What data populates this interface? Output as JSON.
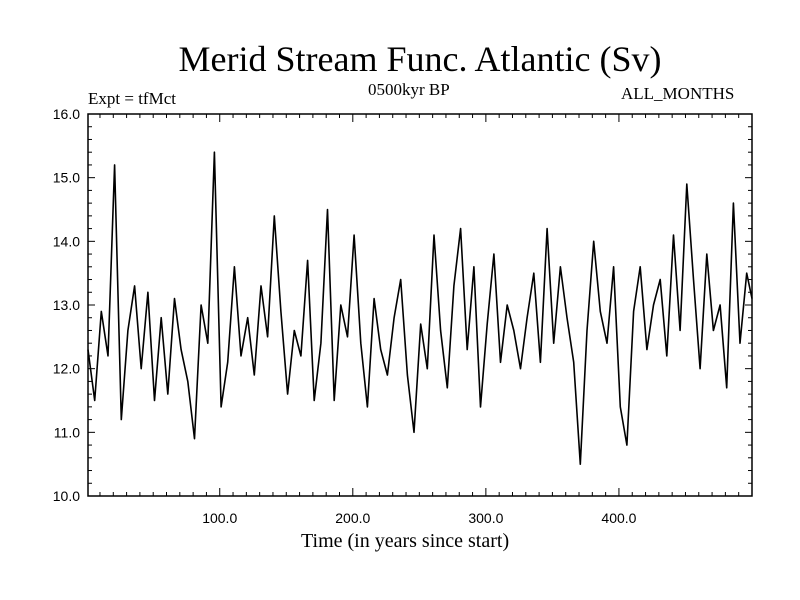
{
  "chart_data": {
    "type": "line",
    "title": "Merid Stream Func. Atlantic (Sv)",
    "subtitle_left": "Expt = tfMct",
    "subtitle_center": "0500kyr BP",
    "subtitle_right": "ALL_MONTHS",
    "xlabel": "Time (in years since start)",
    "ylabel": "",
    "xlim": [
      1,
      500
    ],
    "ylim": [
      10.0,
      16.0
    ],
    "x_ticks": [
      100,
      200,
      300,
      400
    ],
    "x_tick_labels": [
      "100.0",
      "200.0",
      "300.0",
      "400.0"
    ],
    "y_ticks": [
      10,
      11,
      12,
      13,
      14,
      15,
      16
    ],
    "y_tick_labels": [
      "10.0",
      "11.0",
      "12.0",
      "13.0",
      "14.0",
      "15.0",
      "16.0"
    ],
    "series": [
      {
        "name": "Merid Stream Func. Atlantic",
        "x": [
          1,
          6,
          11,
          16,
          21,
          26,
          31,
          36,
          41,
          46,
          51,
          56,
          61,
          66,
          71,
          76,
          81,
          86,
          91,
          96,
          101,
          106,
          111,
          116,
          121,
          126,
          131,
          136,
          141,
          146,
          151,
          156,
          161,
          166,
          171,
          176,
          181,
          186,
          191,
          196,
          201,
          206,
          211,
          216,
          221,
          226,
          231,
          236,
          241,
          246,
          251,
          256,
          261,
          266,
          271,
          276,
          281,
          286,
          291,
          296,
          301,
          306,
          311,
          316,
          321,
          326,
          331,
          336,
          341,
          346,
          351,
          356,
          361,
          366,
          371,
          376,
          381,
          386,
          391,
          396,
          401,
          406,
          411,
          416,
          421,
          426,
          431,
          436,
          441,
          446,
          451,
          456,
          461,
          466,
          471,
          476,
          481,
          486,
          491,
          496,
          500
        ],
        "values": [
          12.3,
          11.5,
          12.9,
          12.2,
          15.2,
          11.2,
          12.6,
          13.3,
          12.0,
          13.2,
          11.5,
          12.8,
          11.6,
          13.1,
          12.3,
          11.8,
          10.9,
          13.0,
          12.4,
          15.4,
          11.4,
          12.1,
          13.6,
          12.2,
          12.8,
          11.9,
          13.3,
          12.5,
          14.4,
          12.9,
          11.6,
          12.6,
          12.2,
          13.7,
          11.5,
          12.4,
          14.5,
          11.5,
          13.0,
          12.5,
          14.1,
          12.4,
          11.4,
          13.1,
          12.3,
          11.9,
          12.8,
          13.4,
          11.9,
          11.0,
          12.7,
          12.0,
          14.1,
          12.6,
          11.7,
          13.3,
          14.2,
          12.3,
          13.6,
          11.4,
          12.7,
          13.8,
          12.1,
          13.0,
          12.6,
          12.0,
          12.8,
          13.5,
          12.1,
          14.2,
          12.4,
          13.6,
          12.8,
          12.1,
          10.5,
          12.6,
          14.0,
          12.9,
          12.4,
          13.6,
          11.4,
          10.8,
          12.9,
          13.6,
          12.3,
          13.0,
          13.4,
          12.2,
          14.1,
          12.6,
          14.9,
          13.4,
          12.0,
          13.8,
          12.6,
          13.0,
          11.7,
          14.6,
          12.4,
          13.5,
          13.1
        ]
      }
    ]
  }
}
